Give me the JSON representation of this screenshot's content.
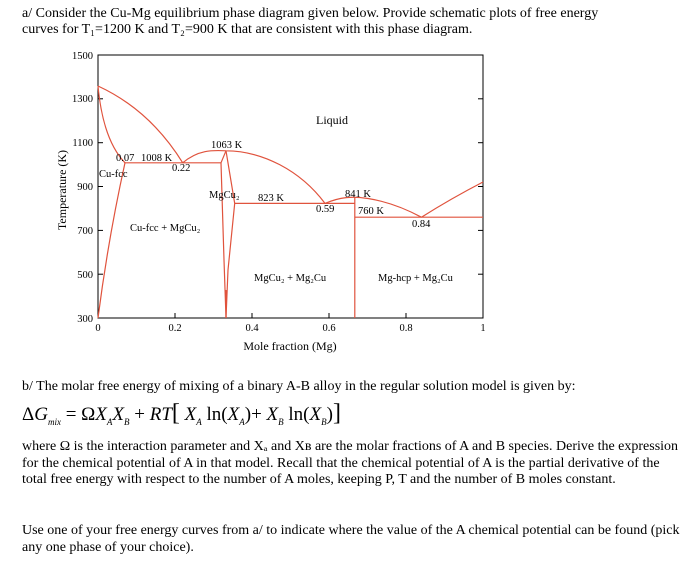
{
  "part_a": {
    "line1": "a/ Consider the Cu-Mg equilibrium phase diagram given below. Provide schematic plots of free energy",
    "line2": "curves for T₁=1200 K and T₂=900 K that are consistent with this phase diagram."
  },
  "chart_data": {
    "type": "phase-diagram",
    "xlabel": "Mole fraction (Mg)",
    "ylabel": "Temperature (K)",
    "xlim": [
      0,
      1
    ],
    "ylim": [
      300,
      1500
    ],
    "x_ticks": [
      "0",
      "0.2",
      "0.4",
      "0.6",
      "0.8",
      "1"
    ],
    "y_ticks": [
      "1500",
      "1300",
      "1100",
      "900",
      "700",
      "500",
      "300"
    ],
    "regions": [
      "Liquid",
      "Cu-fcc",
      "Cu-fcc + MgCu₂",
      "MgCu₂",
      "MgCu₂ + Mg₂Cu",
      "Mg-hcp + Mg₂Cu"
    ],
    "annotations": [
      "0.07",
      "1008 K",
      "0.22",
      "1063 K",
      "823 K",
      "0.59",
      "841 K",
      "760 K",
      "0.84"
    ],
    "invariants": [
      {
        "T": 1008,
        "x": [
          0.07,
          0.22,
          0.32
        ]
      },
      {
        "T": 1063,
        "x": [
          0.333
        ]
      },
      {
        "T": 823,
        "x": [
          0.355,
          0.59,
          0.667
        ]
      },
      {
        "T": 841,
        "x": [
          0.667
        ]
      },
      {
        "T": 760,
        "x": [
          0.667,
          0.84,
          1
        ]
      }
    ]
  },
  "part_b": {
    "intro": "b/ The molar free energy of mixing of a binary A-B alloy in the regular solution model is given by:",
    "where": "where Ω is the interaction parameter and Xₐ and Xʙ are the molar fractions of A and B species. Derive the expression for the chemical potential of A in that model. Recall that the chemical potential of A is the partial derivative of the total free energy with respect to the number of A moles, keeping P, T and the number of B moles constant.",
    "use": "Use one of your free energy curves from a/ to indicate where the value of the A chemical potential can be found (pick any one phase of your choice)."
  }
}
